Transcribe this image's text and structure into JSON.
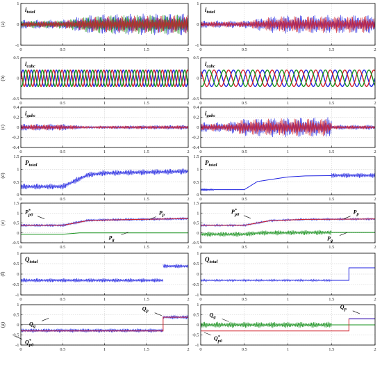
{
  "colors": {
    "blue": "#1f22e0",
    "red": "#d0202a",
    "green": "#16901c",
    "darkred": "#8a2a3c",
    "gray": "#8a8a8a"
  },
  "chart_data": [
    {
      "id": "a-left",
      "row_label": "(a)",
      "type": "line",
      "title": "i_total",
      "xlim": [
        0,
        2
      ],
      "ylim": [
        -1,
        1
      ],
      "xticks": [
        "0",
        "0.5",
        "1",
        "1.5",
        "2"
      ],
      "yticks": [
        "1",
        "0",
        "-1"
      ],
      "grid": true,
      "series": [
        {
          "color": "#1f22e0",
          "style": "band",
          "env": [
            [
              0,
              0.22
            ],
            [
              0.5,
              0.22
            ],
            [
              0.8,
              0.45
            ],
            [
              1,
              0.5
            ],
            [
              2,
              0.55
            ]
          ]
        },
        {
          "color": "#16901c",
          "style": "band",
          "env": [
            [
              0,
              0.18
            ],
            [
              0.5,
              0.2
            ],
            [
              0.8,
              0.4
            ],
            [
              1,
              0.45
            ],
            [
              2,
              0.5
            ]
          ]
        },
        {
          "color": "#d0202a",
          "style": "band",
          "env": [
            [
              0,
              0.15
            ],
            [
              0.5,
              0.18
            ],
            [
              0.8,
              0.35
            ],
            [
              1,
              0.4
            ],
            [
              2,
              0.45
            ]
          ]
        }
      ]
    },
    {
      "id": "a-right",
      "type": "line",
      "title": "i_total",
      "xlim": [
        0,
        2
      ],
      "ylim": [
        -1,
        1
      ],
      "xticks": [
        "0",
        "0.5",
        "1",
        "1.5",
        "2"
      ],
      "yticks": [
        "1",
        "0",
        "-1"
      ],
      "grid": true,
      "series": [
        {
          "color": "#1f22e0",
          "style": "band",
          "env": [
            [
              0,
              0.18
            ],
            [
              0.5,
              0.18
            ],
            [
              0.8,
              0.4
            ],
            [
              1,
              0.45
            ],
            [
              2,
              0.45
            ]
          ]
        },
        {
          "color": "#d0202a",
          "style": "band",
          "env": [
            [
              0,
              0.15
            ],
            [
              0.5,
              0.15
            ],
            [
              0.8,
              0.35
            ],
            [
              1,
              0.4
            ],
            [
              2,
              0.42
            ]
          ]
        }
      ]
    },
    {
      "id": "b-left",
      "row_label": "(b)",
      "type": "line",
      "title": "i_cabc",
      "xlim": [
        0,
        2
      ],
      "ylim": [
        -0.5,
        0.5
      ],
      "xticks": [
        "0",
        "0.5",
        "1",
        "1.5",
        "2"
      ],
      "yticks": [
        "0.5",
        "0",
        "-0.5"
      ],
      "grid": true,
      "series": [
        {
          "color": "#1f22e0",
          "style": "sine",
          "amp": 0.2,
          "f": 10,
          "ph": 0
        },
        {
          "color": "#d0202a",
          "style": "sine",
          "amp": 0.2,
          "f": 10,
          "ph": 2.094
        },
        {
          "color": "#16901c",
          "style": "sine",
          "amp": 0.2,
          "f": 10,
          "ph": 4.189
        }
      ]
    },
    {
      "id": "b-right",
      "type": "line",
      "title": "i_cabc",
      "xlim": [
        0,
        2
      ],
      "ylim": [
        -0.5,
        0.5
      ],
      "xticks": [
        "0",
        "0.5",
        "1",
        "1.5",
        "2"
      ],
      "yticks": [
        "0.5",
        "0",
        "-0.5"
      ],
      "grid": true,
      "series": [
        {
          "color": "#1f22e0",
          "style": "sine",
          "amp": 0.2,
          "f": 6,
          "ph": 0
        },
        {
          "color": "#d0202a",
          "style": "sine",
          "amp": 0.2,
          "f": 6,
          "ph": 2.094
        },
        {
          "color": "#16901c",
          "style": "sine",
          "amp": 0.2,
          "f": 6,
          "ph": 4.189
        }
      ]
    },
    {
      "id": "c-left",
      "row_label": "(c)",
      "type": "line",
      "title": "i_gabc",
      "xlim": [
        0,
        2
      ],
      "ylim": [
        -0.4,
        0.4
      ],
      "xticks": [
        "0",
        "0.5",
        "1",
        "1.5",
        "2"
      ],
      "yticks": [
        "0.4",
        "0.2",
        "0",
        "-0.2",
        "-0.4"
      ],
      "grid": true,
      "series": [
        {
          "color": "#1f22e0",
          "style": "band",
          "env": [
            [
              0,
              0.07
            ],
            [
              0.5,
              0.07
            ],
            [
              0.8,
              0.02
            ],
            [
              1,
              0.03
            ],
            [
              2,
              0.05
            ]
          ]
        },
        {
          "color": "#d0202a",
          "style": "band",
          "env": [
            [
              0,
              0.06
            ],
            [
              0.5,
              0.06
            ],
            [
              0.8,
              0.02
            ],
            [
              1,
              0.03
            ],
            [
              2,
              0.04
            ]
          ]
        }
      ]
    },
    {
      "id": "c-right",
      "type": "line",
      "title": "i_gabc",
      "xlim": [
        0,
        2
      ],
      "ylim": [
        -0.4,
        0.4
      ],
      "xticks": [
        "0",
        "0.5",
        "1",
        "1.5",
        "2"
      ],
      "yticks": [
        "0.4",
        "0.2",
        "0",
        "-0.2",
        "-0.4"
      ],
      "grid": true,
      "series": [
        {
          "color": "#1f22e0",
          "style": "band",
          "env": [
            [
              0,
              0.1
            ],
            [
              0.3,
              0.1
            ],
            [
              0.5,
              0.18
            ],
            [
              1,
              0.2
            ],
            [
              1.5,
              0.2
            ],
            [
              1.5,
              0.05
            ],
            [
              2,
              0.05
            ]
          ]
        },
        {
          "color": "#d0202a",
          "style": "band",
          "env": [
            [
              0,
              0.08
            ],
            [
              0.3,
              0.08
            ],
            [
              0.5,
              0.16
            ],
            [
              1,
              0.18
            ],
            [
              1.5,
              0.18
            ],
            [
              1.5,
              0.04
            ],
            [
              2,
              0.04
            ]
          ]
        }
      ]
    },
    {
      "id": "d-left",
      "row_label": "(d)",
      "type": "line",
      "title": "P_total",
      "xlim": [
        0,
        2
      ],
      "ylim": [
        0,
        1.5
      ],
      "xticks": [
        "0",
        "0.5",
        "1",
        "1.5",
        "2"
      ],
      "yticks": [
        "1.5",
        "1",
        "0.5",
        "0"
      ],
      "grid": true,
      "series": [
        {
          "color": "#1f22e0",
          "style": "band",
          "center": [
            [
              0,
              0.32
            ],
            [
              0.5,
              0.32
            ],
            [
              0.8,
              0.78
            ],
            [
              1,
              0.85
            ],
            [
              2,
              0.92
            ]
          ],
          "amp": 0.12
        }
      ]
    },
    {
      "id": "d-right",
      "type": "line",
      "title": "P_total",
      "xlim": [
        0,
        2
      ],
      "ylim": [
        0,
        1.5
      ],
      "xticks": [
        "0",
        "0.5",
        "1",
        "1.5",
        "2"
      ],
      "yticks": [
        "1.5",
        "1",
        "0.5",
        "0"
      ],
      "grid": true,
      "series": [
        {
          "color": "#1f22e0",
          "style": "band",
          "center": [
            [
              0,
              0.2
            ],
            [
              0.15,
              0.2
            ]
          ],
          "amp": 0.04
        },
        {
          "color": "#1f22e0",
          "style": "line",
          "points": [
            [
              0.15,
              0.2
            ],
            [
              0.5,
              0.2
            ],
            [
              0.65,
              0.52
            ],
            [
              1,
              0.7
            ],
            [
              1.2,
              0.74
            ],
            [
              1.5,
              0.75
            ]
          ]
        },
        {
          "color": "#1f22e0",
          "style": "band",
          "center": [
            [
              1.5,
              0.76
            ],
            [
              2,
              0.76
            ]
          ],
          "amp": 0.1
        }
      ]
    },
    {
      "id": "e-left",
      "row_label": "(e)",
      "type": "line",
      "xlim": [
        0,
        2
      ],
      "ylim": [
        -0.5,
        1.5
      ],
      "xticks": [
        "0",
        "0.5",
        "1",
        "1.5",
        "2"
      ],
      "yticks": [
        "1.5",
        "1",
        "0.5",
        "0",
        "-0.5"
      ],
      "grid": true,
      "series": [
        {
          "color": "#1f22e0",
          "style": "band",
          "center": [
            [
              0,
              0.38
            ],
            [
              0.5,
              0.38
            ],
            [
              0.8,
              0.63
            ],
            [
              1,
              0.65
            ],
            [
              2,
              0.72
            ]
          ],
          "amp": 0.07
        },
        {
          "color": "#d0202a",
          "style": "line",
          "points": [
            [
              0,
              0.38
            ],
            [
              0.5,
              0.38
            ],
            [
              0.8,
              0.62
            ],
            [
              1,
              0.65
            ],
            [
              2,
              0.72
            ]
          ]
        },
        {
          "color": "#16901c",
          "style": "line",
          "points": [
            [
              0,
              -0.07
            ],
            [
              0.5,
              -0.07
            ],
            [
              0.7,
              0
            ],
            [
              2,
              0
            ]
          ]
        }
      ],
      "annotations": [
        "P_p0*",
        "P_p",
        "P_g"
      ]
    },
    {
      "id": "e-right",
      "type": "line",
      "xlim": [
        0,
        2
      ],
      "ylim": [
        -0.5,
        1.5
      ],
      "xticks": [
        "0",
        "0.5",
        "1",
        "1.5",
        "2"
      ],
      "yticks": [
        "1.5",
        "1",
        "0.5",
        "0",
        "-0.5"
      ],
      "grid": true,
      "series": [
        {
          "color": "#1f22e0",
          "style": "band",
          "center": [
            [
              0,
              0.38
            ],
            [
              0.5,
              0.38
            ],
            [
              0.8,
              0.62
            ],
            [
              1.2,
              0.68
            ],
            [
              2,
              0.7
            ]
          ],
          "amp": 0.05
        },
        {
          "color": "#d0202a",
          "style": "line",
          "points": [
            [
              0,
              0.38
            ],
            [
              0.5,
              0.38
            ],
            [
              0.8,
              0.62
            ],
            [
              1.2,
              0.68
            ],
            [
              2,
              0.7
            ]
          ]
        },
        {
          "color": "#16901c",
          "style": "band",
          "center": [
            [
              0,
              -0.07
            ],
            [
              0.5,
              -0.07
            ],
            [
              0.7,
              0
            ],
            [
              1.5,
              0.02
            ]
          ],
          "amp": 0.13
        },
        {
          "color": "#16901c",
          "style": "line",
          "points": [
            [
              1.5,
              0.02
            ],
            [
              2,
              0.02
            ]
          ]
        }
      ],
      "annotations": [
        "P_p0*",
        "P_p",
        "P_g"
      ]
    },
    {
      "id": "f-left",
      "row_label": "(f)",
      "type": "line",
      "title": "Q_total",
      "xlim": [
        0,
        2
      ],
      "ylim": [
        -1,
        1
      ],
      "xticks": [
        "0",
        "0.5",
        "1",
        "1.5",
        "2"
      ],
      "yticks": [
        "1",
        "0.5",
        "0",
        "-0.5",
        "-1"
      ],
      "grid": true,
      "series": [
        {
          "color": "#1f22e0",
          "style": "band",
          "center": [
            [
              0,
              -0.3
            ],
            [
              1.7,
              -0.3
            ]
          ],
          "amp": 0.1
        },
        {
          "color": "#1f22e0",
          "style": "band",
          "center": [
            [
              1.7,
              0.38
            ],
            [
              2,
              0.38
            ]
          ],
          "amp": 0.1
        }
      ]
    },
    {
      "id": "f-right",
      "type": "line",
      "title": "Q_total",
      "xlim": [
        0,
        2
      ],
      "ylim": [
        -1,
        1
      ],
      "xticks": [
        "0",
        "0.5",
        "1",
        "1.5",
        "2"
      ],
      "yticks": [
        "1",
        "0.5",
        "0",
        "-0.5",
        "-1"
      ],
      "grid": true,
      "series": [
        {
          "color": "#1f22e0",
          "style": "band",
          "center": [
            [
              0,
              -0.3
            ],
            [
              1.5,
              -0.3
            ]
          ],
          "amp": 0.05
        },
        {
          "color": "#1f22e0",
          "style": "line",
          "points": [
            [
              1.5,
              -0.3
            ],
            [
              1.7,
              -0.3
            ],
            [
              1.7,
              0.3
            ],
            [
              2,
              0.3
            ]
          ]
        }
      ]
    },
    {
      "id": "g-left",
      "row_label": "(g)",
      "type": "line",
      "xlim": [
        0,
        2
      ],
      "ylim": [
        -1,
        1
      ],
      "xticks": [
        "0",
        "0.5",
        "1",
        "1.5",
        "2"
      ],
      "yticks": [
        "1",
        "0.5",
        "0",
        "-0.5",
        "-1"
      ],
      "grid": true,
      "series": [
        {
          "color": "#8a8a8a",
          "style": "line",
          "points": [
            [
              0,
              0.02
            ],
            [
              2,
              0.02
            ]
          ]
        },
        {
          "color": "#1f22e0",
          "style": "band",
          "center": [
            [
              0,
              -0.28
            ],
            [
              1.7,
              -0.28
            ]
          ],
          "amp": 0.1
        },
        {
          "color": "#1f22e0",
          "style": "band",
          "center": [
            [
              1.7,
              0.38
            ],
            [
              2,
              0.38
            ]
          ],
          "amp": 0.1
        },
        {
          "color": "#d0202a",
          "style": "line",
          "points": [
            [
              0,
              -0.3
            ],
            [
              1.7,
              -0.3
            ],
            [
              1.7,
              0.38
            ],
            [
              2,
              0.38
            ]
          ]
        }
      ],
      "annotations": [
        "Q_g",
        "Q_p0*",
        "Q_p"
      ]
    },
    {
      "id": "g-right",
      "type": "line",
      "xlim": [
        0,
        2
      ],
      "ylim": [
        -1,
        1
      ],
      "xticks": [
        "0",
        "0.5",
        "1",
        "1.5",
        "2"
      ],
      "yticks": [
        "1",
        "0.5",
        "0",
        "-0.5",
        "-1"
      ],
      "grid": true,
      "series": [
        {
          "color": "#16901c",
          "style": "band",
          "center": [
            [
              0,
              0
            ],
            [
              1.5,
              0
            ]
          ],
          "amp": 0.15
        },
        {
          "color": "#16901c",
          "style": "line",
          "points": [
            [
              1.5,
              0
            ],
            [
              2,
              0
            ]
          ]
        },
        {
          "color": "#d0202a",
          "style": "line",
          "points": [
            [
              0,
              -0.3
            ],
            [
              1.7,
              -0.3
            ],
            [
              1.7,
              0.3
            ],
            [
              2,
              0.3
            ]
          ]
        },
        {
          "color": "#1f22e0",
          "style": "line",
          "points": [
            [
              1.7,
              0.3
            ],
            [
              2,
              0.3
            ]
          ]
        }
      ],
      "annotations": [
        "Q_g",
        "Q_p0*",
        "Q_p"
      ]
    }
  ]
}
